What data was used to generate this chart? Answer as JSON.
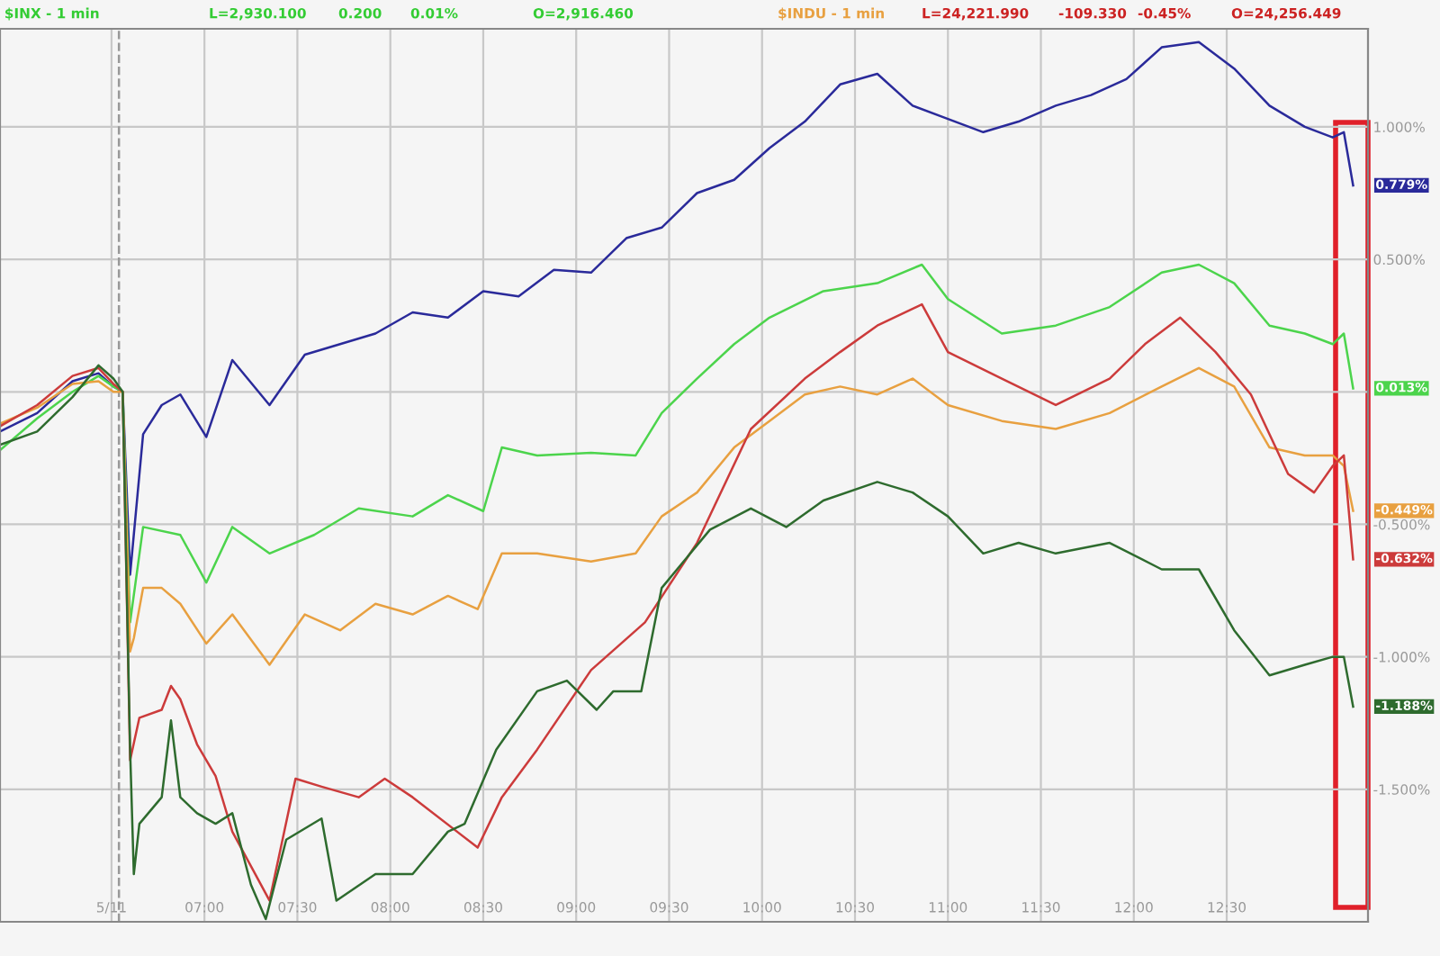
{
  "chart_data": {
    "type": "line",
    "annotations": [
      "$INX - 1 min",
      "L=2,930.100",
      "0.200",
      "0.01%",
      "O=2,916.460",
      "$INDU - 1 min",
      "L=24,221.990",
      "-109.330",
      "-0.45%",
      "O=24,256.449"
    ],
    "xlim": [
      5.9,
      13.26
    ],
    "xticks": [
      {
        "value": 6.5,
        "label": "5/11"
      },
      {
        "value": 7,
        "label": "07:00"
      },
      {
        "value": 7.5,
        "label": "07:30"
      },
      {
        "value": 8,
        "label": "08:00"
      },
      {
        "value": 8.5,
        "label": "08:30"
      },
      {
        "value": 9,
        "label": "09:00"
      },
      {
        "value": 9.5,
        "label": "09:30"
      },
      {
        "value": 10,
        "label": "10:00"
      },
      {
        "value": 10.5,
        "label": "10:30"
      },
      {
        "value": 11,
        "label": "11:00"
      },
      {
        "value": 11.5,
        "label": "11:30"
      },
      {
        "value": 12,
        "label": "12:00"
      },
      {
        "value": 12.5,
        "label": "12:30"
      }
    ],
    "ylim": [
      -2.0,
      1.37
    ],
    "yticks": [
      {
        "value": 1,
        "label": "1.000%"
      },
      {
        "value": 0.5,
        "label": "0.500%"
      },
      {
        "value": 0,
        "label": null
      },
      {
        "value": -0.5,
        "label": "-0.500%"
      },
      {
        "value": -1,
        "label": "-1.000%"
      },
      {
        "value": -1.5,
        "label": "-1.500%"
      }
    ],
    "grid": true,
    "ref_lines": [
      {
        "axis": "x",
        "value": 6.54,
        "label": null,
        "color": "#999999",
        "line_style": "dashed"
      }
    ],
    "series": [
      {
        "color": "#2a2a9a",
        "x": [
          5.9,
          6.1,
          6.29,
          6.43,
          6.51,
          6.56,
          6.6,
          6.67,
          6.77,
          6.87,
          7.01,
          7.15,
          7.35,
          7.54,
          7.73,
          7.92,
          8.12,
          8.31,
          8.5,
          8.69,
          8.88,
          9.08,
          9.27,
          9.46,
          9.65,
          9.85,
          10.04,
          10.23,
          10.42,
          10.62,
          10.81,
          11.0,
          11.19,
          11.38,
          11.58,
          11.77,
          11.96,
          12.15,
          12.35,
          12.54,
          12.73,
          12.92,
          13.07,
          13.13,
          13.18
        ],
        "values": [
          -0.15,
          -0.08,
          0.04,
          0.07,
          0.02,
          0.0,
          -0.69,
          -0.16,
          -0.05,
          -0.01,
          -0.17,
          0.12,
          -0.05,
          0.14,
          0.18,
          0.22,
          0.3,
          0.28,
          0.38,
          0.36,
          0.46,
          0.45,
          0.58,
          0.62,
          0.75,
          0.8,
          0.92,
          1.02,
          1.16,
          1.2,
          1.08,
          1.03,
          0.98,
          1.02,
          1.08,
          1.12,
          1.18,
          1.3,
          1.32,
          1.22,
          1.08,
          1.0,
          0.96,
          0.98,
          0.779
        ],
        "value_labels": [
          null,
          null,
          null,
          null,
          null,
          null,
          null,
          null,
          null,
          null,
          null,
          null,
          null,
          null,
          null,
          null,
          null,
          null,
          null,
          null,
          null,
          null,
          null,
          null,
          null,
          null,
          null,
          null,
          null,
          null,
          null,
          null,
          null,
          null,
          null,
          null,
          null,
          null,
          null,
          null,
          null,
          null,
          null,
          null,
          "0.779%"
        ]
      },
      {
        "color": "#4cd44c",
        "x": [
          5.9,
          6.1,
          6.29,
          6.43,
          6.51,
          6.56,
          6.6,
          6.67,
          6.87,
          7.01,
          7.15,
          7.35,
          7.59,
          7.83,
          8.12,
          8.31,
          8.5,
          8.6,
          8.79,
          9.08,
          9.32,
          9.46,
          9.65,
          9.85,
          10.04,
          10.33,
          10.62,
          10.86,
          11.0,
          11.29,
          11.58,
          11.87,
          12.15,
          12.35,
          12.54,
          12.73,
          12.92,
          13.07,
          13.13,
          13.18
        ],
        "values": [
          -0.22,
          -0.1,
          0.0,
          0.06,
          0.02,
          0.0,
          -0.87,
          -0.51,
          -0.54,
          -0.72,
          -0.51,
          -0.61,
          -0.54,
          -0.44,
          -0.47,
          -0.39,
          -0.45,
          -0.21,
          -0.24,
          -0.23,
          -0.24,
          -0.08,
          0.05,
          0.18,
          0.28,
          0.38,
          0.41,
          0.48,
          0.35,
          0.22,
          0.25,
          0.32,
          0.45,
          0.48,
          0.41,
          0.25,
          0.22,
          0.18,
          0.22,
          0.013
        ],
        "value_labels": [
          null,
          null,
          null,
          null,
          null,
          null,
          null,
          null,
          null,
          null,
          null,
          null,
          null,
          null,
          null,
          null,
          null,
          null,
          null,
          null,
          null,
          null,
          null,
          null,
          null,
          null,
          null,
          null,
          null,
          null,
          null,
          null,
          null,
          null,
          null,
          null,
          null,
          null,
          null,
          "0.013%"
        ]
      },
      {
        "color": "#e8a040",
        "x": [
          5.9,
          6.1,
          6.29,
          6.43,
          6.51,
          6.56,
          6.6,
          6.62,
          6.67,
          6.77,
          6.87,
          7.01,
          7.15,
          7.35,
          7.54,
          7.73,
          7.92,
          8.12,
          8.31,
          8.47,
          8.6,
          8.79,
          9.08,
          9.32,
          9.46,
          9.65,
          9.85,
          10.04,
          10.23,
          10.42,
          10.62,
          10.81,
          11.0,
          11.29,
          11.58,
          11.87,
          12.15,
          12.35,
          12.54,
          12.73,
          12.92,
          13.07,
          13.13,
          13.18
        ],
        "values": [
          -0.12,
          -0.06,
          0.03,
          0.04,
          0.0,
          0.0,
          -0.98,
          -0.93,
          -0.74,
          -0.74,
          -0.8,
          -0.95,
          -0.84,
          -1.03,
          -0.84,
          -0.9,
          -0.8,
          -0.84,
          -0.77,
          -0.82,
          -0.61,
          -0.61,
          -0.64,
          -0.61,
          -0.47,
          -0.38,
          -0.21,
          -0.11,
          -0.01,
          0.02,
          -0.01,
          0.05,
          -0.05,
          -0.11,
          -0.14,
          -0.08,
          0.02,
          0.09,
          0.02,
          -0.21,
          -0.24,
          -0.24,
          -0.28,
          -0.449
        ],
        "value_labels": [
          null,
          null,
          null,
          null,
          null,
          null,
          null,
          null,
          null,
          null,
          null,
          null,
          null,
          null,
          null,
          null,
          null,
          null,
          null,
          null,
          null,
          null,
          null,
          null,
          null,
          null,
          null,
          null,
          null,
          null,
          null,
          null,
          null,
          null,
          null,
          null,
          null,
          null,
          null,
          null,
          null,
          null,
          null,
          "-0.449%"
        ]
      },
      {
        "color": "#cc3b3b",
        "x": [
          5.9,
          6.1,
          6.29,
          6.43,
          6.51,
          6.56,
          6.6,
          6.65,
          6.77,
          6.82,
          6.87,
          6.96,
          7.06,
          7.15,
          7.25,
          7.35,
          7.49,
          7.63,
          7.83,
          7.97,
          8.12,
          8.47,
          8.6,
          8.79,
          9.08,
          9.37,
          9.65,
          9.94,
          10.23,
          10.42,
          10.62,
          10.86,
          11.0,
          11.29,
          11.58,
          11.87,
          12.06,
          12.25,
          12.44,
          12.63,
          12.83,
          12.97,
          13.07,
          13.13,
          13.18
        ],
        "values": [
          -0.13,
          -0.05,
          0.06,
          0.09,
          0.03,
          0.0,
          -1.39,
          -1.23,
          -1.2,
          -1.11,
          -1.16,
          -1.33,
          -1.45,
          -1.66,
          -1.79,
          -1.92,
          -1.46,
          -1.49,
          -1.53,
          -1.46,
          -1.53,
          -1.72,
          -1.53,
          -1.35,
          -1.05,
          -0.87,
          -0.57,
          -0.14,
          0.05,
          0.15,
          0.25,
          0.33,
          0.15,
          0.05,
          -0.05,
          0.05,
          0.18,
          0.28,
          0.15,
          -0.01,
          -0.31,
          -0.38,
          -0.28,
          -0.24,
          -0.632
        ],
        "value_labels": [
          null,
          null,
          null,
          null,
          null,
          null,
          null,
          null,
          null,
          null,
          null,
          null,
          null,
          null,
          null,
          null,
          null,
          null,
          null,
          null,
          null,
          null,
          null,
          null,
          null,
          null,
          null,
          null,
          null,
          null,
          null,
          null,
          null,
          null,
          null,
          null,
          null,
          null,
          null,
          null,
          null,
          null,
          null,
          null,
          "-0.632%"
        ]
      },
      {
        "color": "#2e6b2e",
        "x": [
          5.9,
          6.1,
          6.29,
          6.43,
          6.51,
          6.56,
          6.6,
          6.62,
          6.65,
          6.77,
          6.82,
          6.87,
          6.96,
          7.06,
          7.15,
          7.25,
          7.33,
          7.44,
          7.63,
          7.71,
          7.92,
          8.12,
          8.31,
          8.4,
          8.57,
          8.79,
          8.95,
          9.11,
          9.2,
          9.35,
          9.46,
          9.72,
          9.94,
          10.13,
          10.33,
          10.62,
          10.81,
          11.0,
          11.19,
          11.38,
          11.58,
          11.87,
          12.15,
          12.35,
          12.54,
          12.73,
          12.92,
          13.07,
          13.13,
          13.18
        ],
        "values": [
          -0.2,
          -0.15,
          -0.02,
          0.1,
          0.05,
          0.0,
          -1.35,
          -1.82,
          -1.63,
          -1.53,
          -1.24,
          -1.53,
          -1.59,
          -1.63,
          -1.59,
          -1.86,
          -1.99,
          -1.69,
          -1.61,
          -1.92,
          -1.82,
          -1.82,
          -1.66,
          -1.63,
          -1.35,
          -1.13,
          -1.09,
          -1.2,
          -1.13,
          -1.13,
          -0.74,
          -0.52,
          -0.44,
          -0.51,
          -0.41,
          -0.34,
          -0.38,
          -0.47,
          -0.61,
          -0.57,
          -0.61,
          -0.57,
          -0.67,
          -0.67,
          -0.9,
          -1.07,
          -1.03,
          -1.0,
          -1.0,
          -1.188
        ],
        "value_labels": [
          null,
          null,
          null,
          null,
          null,
          null,
          null,
          null,
          null,
          null,
          null,
          null,
          null,
          null,
          null,
          null,
          null,
          null,
          null,
          null,
          null,
          null,
          null,
          null,
          null,
          null,
          null,
          null,
          null,
          null,
          null,
          null,
          null,
          null,
          null,
          null,
          null,
          null,
          null,
          null,
          null,
          null,
          null,
          null,
          null,
          null,
          null,
          null,
          null,
          "-1.188%"
        ]
      }
    ]
  }
}
